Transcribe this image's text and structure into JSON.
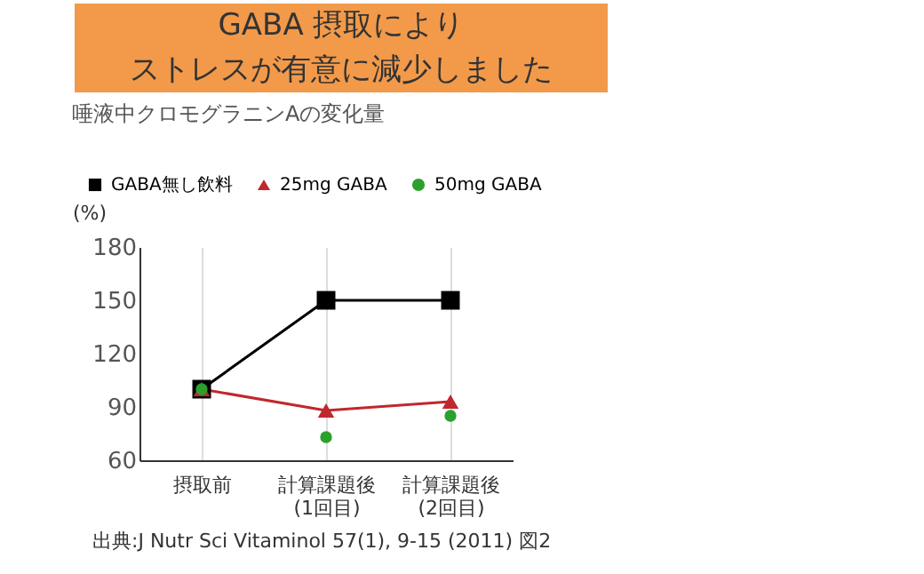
{
  "chart_data": {
    "type": "line",
    "title": "唾液中クロモグラニンAの変化量",
    "ylabel": "(%)",
    "categories": [
      "摂取前",
      "計算課題後\n(1回目)",
      "計算課題後\n(2回目)"
    ],
    "series": [
      {
        "name": "GABA無し飲料",
        "color": "#000000",
        "marker": "square",
        "values": [
          100,
          150,
          150
        ]
      },
      {
        "name": "25mg GABA",
        "color": "#c0282d",
        "marker": "triangle",
        "values": [
          100,
          88,
          93
        ]
      },
      {
        "name": "50mg GABA",
        "color": "#2ca02c",
        "type": "scatter",
        "marker": "circle",
        "values": [
          100,
          73,
          85
        ]
      }
    ],
    "ylim": [
      60,
      180
    ],
    "yticks": [
      60,
      90,
      120,
      150,
      180
    ],
    "grid": "x",
    "legend": "top left",
    "annotations": [
      "GABA 摂取により",
      "ストレスが有意に減少しました",
      "出典:J Nutr Sci Vitaminol 57(1), 9-15 (2011) 図2"
    ]
  }
}
